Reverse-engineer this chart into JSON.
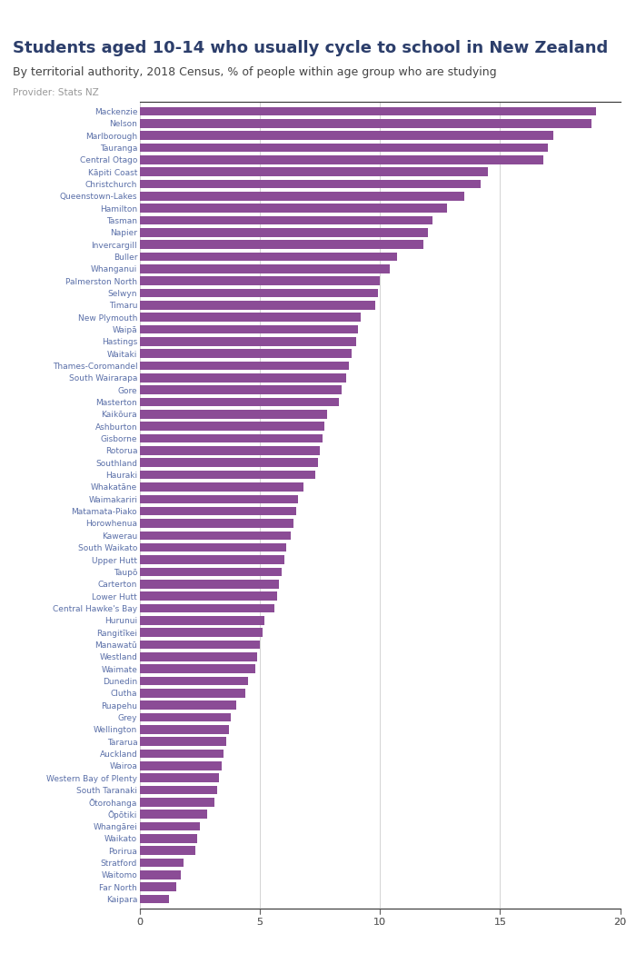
{
  "title": "Students aged 10-14 who usually cycle to school in New Zealand",
  "subtitle": "By territorial authority, 2018 Census, % of people within age group who are studying",
  "provider": "Provider: Stats NZ",
  "bar_color": "#8B4C96",
  "label_color": "#5A6FA8",
  "background_color": "#ffffff",
  "xlim": [
    0,
    20
  ],
  "xticks": [
    0,
    5,
    10,
    15,
    20
  ],
  "categories": [
    "Mackenzie",
    "Nelson",
    "Marlborough",
    "Tauranga",
    "Central Otago",
    "Kāpiti Coast",
    "Christchurch",
    "Queenstown-Lakes",
    "Hamilton",
    "Tasman",
    "Napier",
    "Invercargill",
    "Buller",
    "Whanganui",
    "Palmerston North",
    "Selwyn",
    "Timaru",
    "New Plymouth",
    "Waipā",
    "Hastings",
    "Waitaki",
    "Thames-Coromandel",
    "South Wairarapa",
    "Gore",
    "Masterton",
    "Kaikōura",
    "Ashburton",
    "Gisborne",
    "Rotorua",
    "Southland",
    "Hauraki",
    "Whakatāne",
    "Waimakariri",
    "Matamata-Piako",
    "Horowhenua",
    "Kawerau",
    "South Waikato",
    "Upper Hutt",
    "Taupō",
    "Carterton",
    "Lower Hutt",
    "Central Hawke's Bay",
    "Hurunui",
    "Rangitīkei",
    "Manawatū",
    "Westland",
    "Waimate",
    "Dunedin",
    "Clutha",
    "Ruapehu",
    "Grey",
    "Wellington",
    "Tararua",
    "Auckland",
    "Wairoa",
    "Western Bay of Plenty",
    "South Taranaki",
    "Ōtorohanga",
    "Ōpōtiki",
    "Whangārei",
    "Waikato",
    "Porirua",
    "Stratford",
    "Waitomo",
    "Far North",
    "Kaipara"
  ],
  "values": [
    19.0,
    18.8,
    17.2,
    17.0,
    16.8,
    14.5,
    14.2,
    13.5,
    12.8,
    12.2,
    12.0,
    11.8,
    10.7,
    10.4,
    10.0,
    9.9,
    9.8,
    9.2,
    9.1,
    9.0,
    8.8,
    8.7,
    8.6,
    8.4,
    8.3,
    7.8,
    7.7,
    7.6,
    7.5,
    7.4,
    7.3,
    6.8,
    6.6,
    6.5,
    6.4,
    6.3,
    6.1,
    6.0,
    5.9,
    5.8,
    5.7,
    5.6,
    5.2,
    5.1,
    5.0,
    4.9,
    4.8,
    4.5,
    4.4,
    4.0,
    3.8,
    3.7,
    3.6,
    3.5,
    3.4,
    3.3,
    3.2,
    3.1,
    2.8,
    2.5,
    2.4,
    2.3,
    1.8,
    1.7,
    1.5,
    1.2
  ],
  "figure_nz_bg": "#5B6EC7",
  "figure_nz_text": "#ffffff",
  "title_color": "#2c3e6b",
  "subtitle_color": "#444444",
  "provider_color": "#999999",
  "title_fontsize": 13,
  "subtitle_fontsize": 9,
  "provider_fontsize": 7.5,
  "tick_fontsize": 8,
  "label_fontsize": 6.5
}
